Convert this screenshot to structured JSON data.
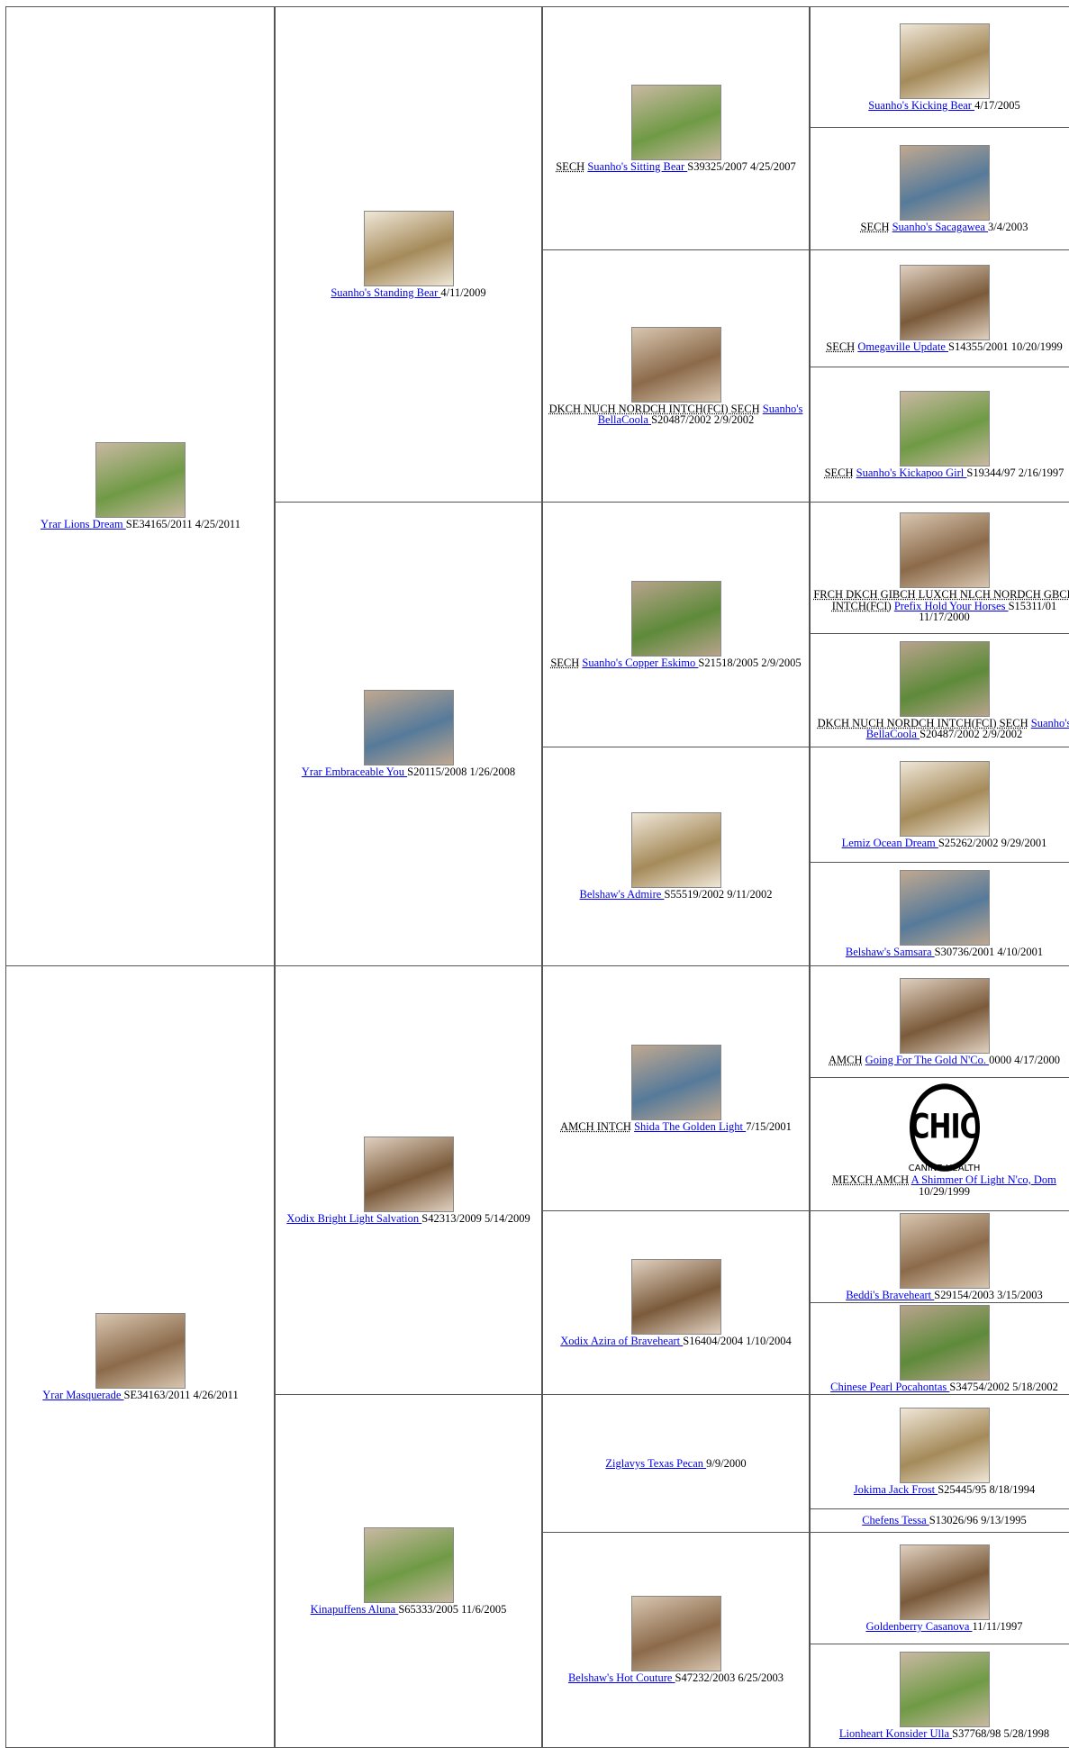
{
  "generations": [
    [
      {
        "name": "Yrar Lions Dream ",
        "info": "SE34165/2011 4/25/2011"
      },
      {
        "name": "Yrar Masquerade ",
        "info": "SE34163/2011 4/26/2011"
      }
    ],
    [
      {
        "name": "Suanho's Standing Bear ",
        "info": "4/11/2009"
      },
      {
        "name": "Yrar Embraceable You ",
        "info": "S20115/2008 1/26/2008"
      },
      {
        "name": "Xodix Bright Light Salvation ",
        "info": "S42313/2009 5/14/2009"
      },
      {
        "name": "Kinapuffens Aluna ",
        "info": "S65333/2005 11/6/2005"
      }
    ],
    [
      {
        "titles": "SECH",
        "name": "Suanho's Sitting Bear ",
        "info": "S39325/2007 4/25/2007"
      },
      {
        "titles": "DKCH NUCH NORDCH INTCH(FCI) SECH",
        "name": "Suanho's BellaCoola ",
        "info": "S20487/2002 2/9/2002"
      },
      {
        "titles": "SECH",
        "name": "Suanho's Copper Eskimo ",
        "info": "S21518/2005 2/9/2005"
      },
      {
        "name": "Belshaw's Admire ",
        "info": "S55519/2002 9/11/2002"
      },
      {
        "titles": "AMCH INTCH",
        "name": "Shida The Golden Light ",
        "info": "7/15/2001"
      },
      {
        "name": "Xodix Azira of Braveheart ",
        "info": "S16404/2004 1/10/2004"
      },
      {
        "name": "Ziglavys Texas Pecan ",
        "info": "9/9/2000"
      },
      {
        "name": "Belshaw's Hot Couture ",
        "info": "S47232/2003 6/25/2003"
      }
    ],
    [
      {
        "name": "Suanho's Kicking Bear ",
        "info": "4/17/2005"
      },
      {
        "titles": "SECH",
        "name": "Suanho's Sacagawea ",
        "info": "3/4/2003"
      },
      {
        "titles": "SECH",
        "name": "Omegaville Update ",
        "info": "S14355/2001 10/20/1999"
      },
      {
        "titles": "SECH",
        "name": "Suanho's Kickapoo Girl ",
        "info": "S19344/97 2/16/1997"
      },
      {
        "titles": "FRCH DKCH GIBCH LUXCH NLCH NORDCH GBCH INTCH(FCI)",
        "name": "Prefix Hold Your Horses ",
        "info": "S15311/01 11/17/2000"
      },
      {
        "titles": "DKCH NUCH NORDCH INTCH(FCI) SECH",
        "name": "Suanho's BellaCoola ",
        "info": "S20487/2002 2/9/2002"
      },
      {
        "name": "Lemiz Ocean Dream ",
        "info": "S25262/2002 9/29/2001"
      },
      {
        "name": "Belshaw's Samsara ",
        "info": "S30736/2001 4/10/2001"
      },
      {
        "titles": "AMCH",
        "name": "Going For The Gold N'Co. ",
        "info": "0000 4/17/2000"
      },
      {
        "logo": {
          "text": "CHIC",
          "caption": "CANINE HEALTH"
        },
        "titles": "MEXCH AMCH",
        "name": "A Shimmer Of Light N'co, Dom ",
        "info": "10/29/1999"
      },
      {
        "name": "Beddi's Braveheart ",
        "info": "S29154/2003 3/15/2003"
      },
      {
        "name": "Chinese Pearl Pocahontas ",
        "info": "S34754/2002 5/18/2002"
      },
      {
        "name": "Jokima Jack Frost ",
        "info": "S25445/95 8/18/1994"
      },
      {
        "name": "Chefens Tessa ",
        "info": "S13026/96 9/13/1995"
      },
      {
        "name": "Goldenberry Casanova ",
        "info": "11/11/1997"
      },
      {
        "name": "Lionheart Konsider Ulla ",
        "info": "S37768/98 5/28/1998"
      }
    ]
  ]
}
